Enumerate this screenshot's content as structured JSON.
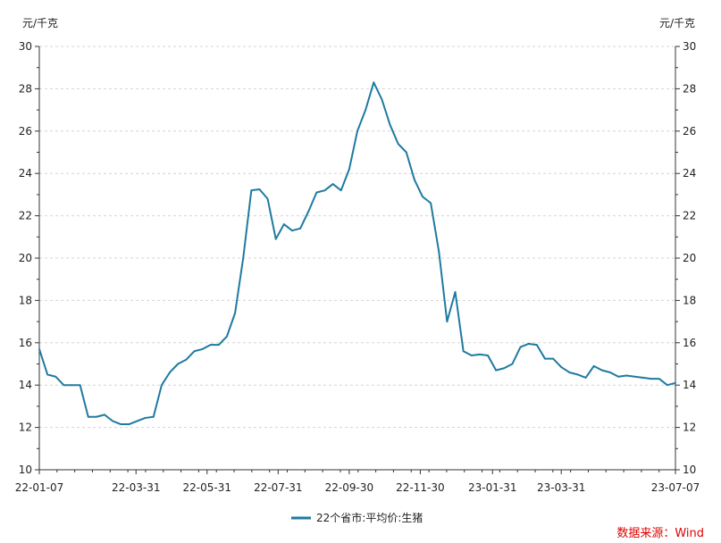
{
  "chart_data": {
    "type": "line",
    "ylabel_left": "元/千克",
    "ylabel_right": "元/千克",
    "ylim": [
      10,
      30
    ],
    "yticks": [
      10,
      12,
      14,
      16,
      18,
      20,
      22,
      24,
      26,
      28,
      30
    ],
    "xlim": [
      "2022-01-07",
      "2023-07-07"
    ],
    "xticks": [
      {
        "date": "2022-01-07",
        "label": "22-01-07"
      },
      {
        "date": "2022-03-31",
        "label": "22-03-31"
      },
      {
        "date": "2022-05-31",
        "label": "22-05-31"
      },
      {
        "date": "2022-07-31",
        "label": "22-07-31"
      },
      {
        "date": "2022-09-30",
        "label": "22-09-30"
      },
      {
        "date": "2022-11-30",
        "label": "22-11-30"
      },
      {
        "date": "2023-01-31",
        "label": "23-01-31"
      },
      {
        "date": "2023-03-31",
        "label": "23-03-31"
      },
      {
        "date": "2023-07-07",
        "label": "23-07-07"
      }
    ],
    "grid": "horizontal-dashed",
    "legend_position": "bottom-center",
    "series": [
      {
        "name": "22个省市:平均价:生猪",
        "color": "#1f7aa0",
        "points": [
          [
            "2022-01-07",
            15.7
          ],
          [
            "2022-01-14",
            14.5
          ],
          [
            "2022-01-21",
            14.4
          ],
          [
            "2022-01-28",
            14.0
          ],
          [
            "2022-02-04",
            14.0
          ],
          [
            "2022-02-11",
            14.0
          ],
          [
            "2022-02-18",
            12.5
          ],
          [
            "2022-02-25",
            12.5
          ],
          [
            "2022-03-04",
            12.6
          ],
          [
            "2022-03-11",
            12.3
          ],
          [
            "2022-03-18",
            12.15
          ],
          [
            "2022-03-25",
            12.15
          ],
          [
            "2022-04-01",
            12.3
          ],
          [
            "2022-04-08",
            12.45
          ],
          [
            "2022-04-15",
            12.5
          ],
          [
            "2022-04-22",
            14.0
          ],
          [
            "2022-04-29",
            14.6
          ],
          [
            "2022-05-06",
            15.0
          ],
          [
            "2022-05-13",
            15.2
          ],
          [
            "2022-05-20",
            15.6
          ],
          [
            "2022-05-27",
            15.7
          ],
          [
            "2022-06-03",
            15.9
          ],
          [
            "2022-06-10",
            15.9
          ],
          [
            "2022-06-17",
            16.3
          ],
          [
            "2022-06-24",
            17.4
          ],
          [
            "2022-07-01",
            20.0
          ],
          [
            "2022-07-08",
            23.2
          ],
          [
            "2022-07-15",
            23.25
          ],
          [
            "2022-07-22",
            22.8
          ],
          [
            "2022-07-29",
            20.9
          ],
          [
            "2022-08-05",
            21.6
          ],
          [
            "2022-08-12",
            21.3
          ],
          [
            "2022-08-19",
            21.4
          ],
          [
            "2022-08-26",
            22.2
          ],
          [
            "2022-09-02",
            23.1
          ],
          [
            "2022-09-09",
            23.2
          ],
          [
            "2022-09-16",
            23.5
          ],
          [
            "2022-09-23",
            23.2
          ],
          [
            "2022-09-30",
            24.2
          ],
          [
            "2022-10-07",
            26.0
          ],
          [
            "2022-10-14",
            27.0
          ],
          [
            "2022-10-21",
            28.3
          ],
          [
            "2022-10-28",
            27.5
          ],
          [
            "2022-11-04",
            26.3
          ],
          [
            "2022-11-11",
            25.4
          ],
          [
            "2022-11-18",
            25.0
          ],
          [
            "2022-11-25",
            23.7
          ],
          [
            "2022-12-02",
            22.9
          ],
          [
            "2022-12-09",
            22.6
          ],
          [
            "2022-12-16",
            20.3
          ],
          [
            "2022-12-23",
            17.0
          ],
          [
            "2022-12-30",
            18.4
          ],
          [
            "2023-01-06",
            15.6
          ],
          [
            "2023-01-13",
            15.4
          ],
          [
            "2023-01-20",
            15.45
          ],
          [
            "2023-01-27",
            15.4
          ],
          [
            "2023-02-03",
            14.7
          ],
          [
            "2023-02-10",
            14.8
          ],
          [
            "2023-02-17",
            15.0
          ],
          [
            "2023-02-24",
            15.8
          ],
          [
            "2023-03-03",
            15.95
          ],
          [
            "2023-03-10",
            15.9
          ],
          [
            "2023-03-17",
            15.25
          ],
          [
            "2023-03-24",
            15.25
          ],
          [
            "2023-03-31",
            14.85
          ],
          [
            "2023-04-07",
            14.6
          ],
          [
            "2023-04-14",
            14.5
          ],
          [
            "2023-04-21",
            14.35
          ],
          [
            "2023-04-28",
            14.9
          ],
          [
            "2023-05-05",
            14.7
          ],
          [
            "2023-05-12",
            14.6
          ],
          [
            "2023-05-19",
            14.4
          ],
          [
            "2023-05-26",
            14.45
          ],
          [
            "2023-06-02",
            14.4
          ],
          [
            "2023-06-09",
            14.35
          ],
          [
            "2023-06-16",
            14.3
          ],
          [
            "2023-06-23",
            14.3
          ],
          [
            "2023-06-30",
            14.0
          ],
          [
            "2023-07-07",
            14.1
          ]
        ]
      }
    ],
    "source_note": "数据来源：Wind"
  }
}
